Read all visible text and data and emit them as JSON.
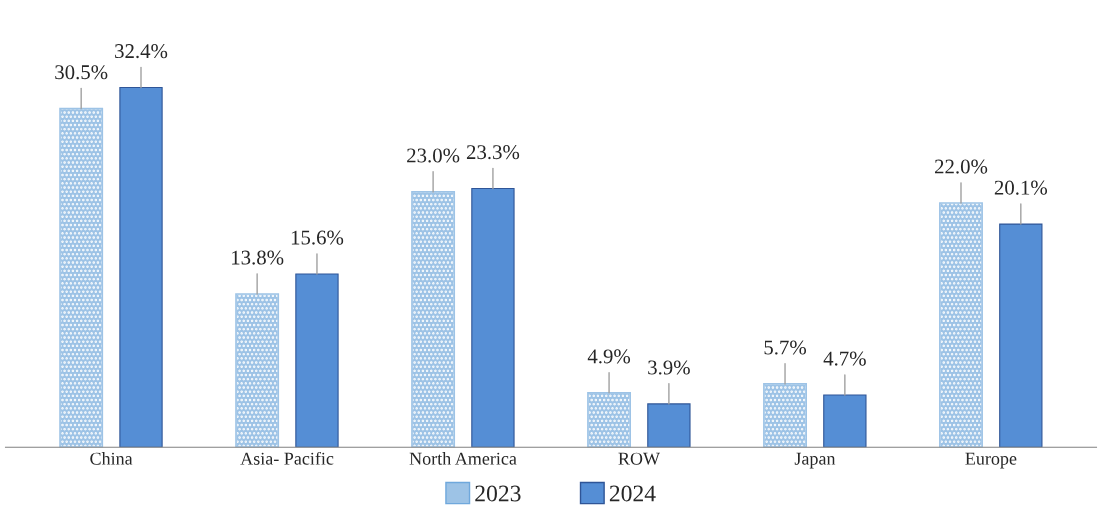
{
  "chart_data": {
    "type": "bar",
    "categories": [
      "China",
      "Asia- Pacific",
      "North America",
      "ROW",
      "Japan",
      "Europe"
    ],
    "series": [
      {
        "name": "2023",
        "color": "#9dc3e6",
        "values": [
          30.5,
          13.8,
          23.0,
          4.9,
          5.7,
          22.0
        ],
        "value_labels": [
          "30.5%",
          "13.8%",
          "23.0%",
          "4.9%",
          "5.7%",
          "22.0%"
        ]
      },
      {
        "name": "2024",
        "color": "#558ed5",
        "values": [
          32.4,
          15.6,
          23.3,
          3.9,
          4.7,
          20.1
        ],
        "value_labels": [
          "32.4%",
          "15.6%",
          "23.3%",
          "3.9%",
          "4.7%",
          "20.1%"
        ]
      }
    ],
    "grid": false,
    "legend": "bottom"
  }
}
